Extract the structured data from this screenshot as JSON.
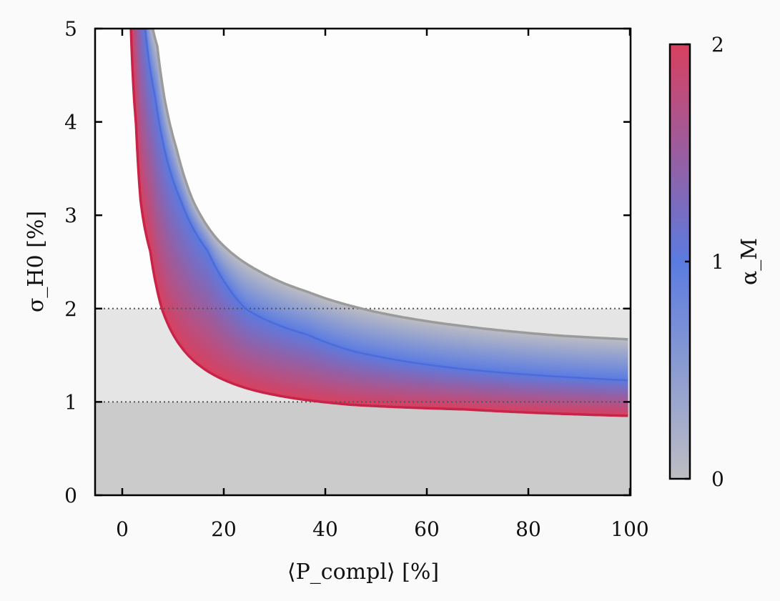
{
  "chart_data": {
    "type": "line",
    "xlabel": "⟨P_compl⟩ [%]",
    "ylabel": "σ_H0 [%]",
    "colorbar_label": "α_M",
    "xlim": [
      -5.3,
      100
    ],
    "ylim": [
      0,
      5
    ],
    "x_ticks": [
      "0",
      "20",
      "40",
      "60",
      "80",
      "100"
    ],
    "y_ticks": [
      "0",
      "1",
      "2",
      "3",
      "4",
      "5"
    ],
    "colorbar_ticks": [
      "0",
      "1",
      "2"
    ],
    "colorbar_range": [
      0,
      2
    ],
    "grid": false,
    "reference_lines": [
      1,
      2
    ],
    "shaded_bands": [
      {
        "from": 0,
        "to": 1,
        "color": "#cbcbcb"
      },
      {
        "from": 1,
        "to": 2,
        "color": "#e5e5e5"
      }
    ],
    "series": [
      {
        "alpha_M": 0,
        "color": "#9b9b9b",
        "x": [
          6.0,
          6.9,
          8.3,
          10.7,
          13.9,
          18.6,
          27.0,
          36.5,
          45,
          67.5,
          86.2,
          100
        ],
        "y": [
          5.0,
          4.81,
          4.26,
          3.71,
          3.16,
          2.75,
          2.4,
          2.18,
          2.03,
          1.81,
          1.71,
          1.67
        ]
      },
      {
        "alpha_M": 1,
        "color": "#4a68d8",
        "x": [
          4.5,
          6.5,
          8.3,
          11.5,
          16.8,
          24.2,
          36.5,
          45,
          67.5,
          100
        ],
        "y": [
          5.0,
          4.26,
          3.71,
          3.16,
          2.62,
          2.0,
          1.72,
          1.55,
          1.35,
          1.23
        ]
      },
      {
        "alpha_M": 2,
        "color": "#c8244a",
        "x": [
          1.7,
          2.7,
          3.6,
          5.5,
          7.8,
          10.7,
          17.7,
          27,
          45,
          67.5,
          100
        ],
        "y": [
          5.0,
          3.98,
          3.16,
          2.62,
          2.0,
          1.66,
          1.3,
          1.11,
          0.97,
          0.92,
          0.85
        ]
      }
    ],
    "colormap": [
      "#bdbdc2",
      "#5b7be0",
      "#d8405f"
    ]
  }
}
